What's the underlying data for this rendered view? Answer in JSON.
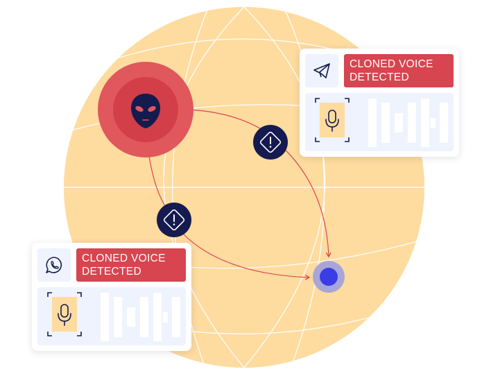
{
  "alerts": [
    {
      "app_icon": "telegram-icon",
      "label": "CLONED VOICE\nDETECTED"
    },
    {
      "app_icon": "whatsapp-icon",
      "label": "CLONED VOICE\nDETECTED"
    }
  ],
  "icons": {
    "attacker": "alien-icon",
    "warning": "warning-diamond-icon",
    "target": "target-dot-icon",
    "voice": "microphone-icon"
  },
  "colors": {
    "globe": "#fedb9f",
    "globe_lines": "#ffffff",
    "attacker_outer": "#e0575c",
    "attacker_inner": "#d23f48",
    "alert": "#d64550",
    "navy": "#151a4f",
    "target": "#3a3de6",
    "target_ring": "#a8a6d8",
    "panel": "#eef3fd",
    "mic_tile": "#fedb9f",
    "connector": "#d9474e"
  }
}
